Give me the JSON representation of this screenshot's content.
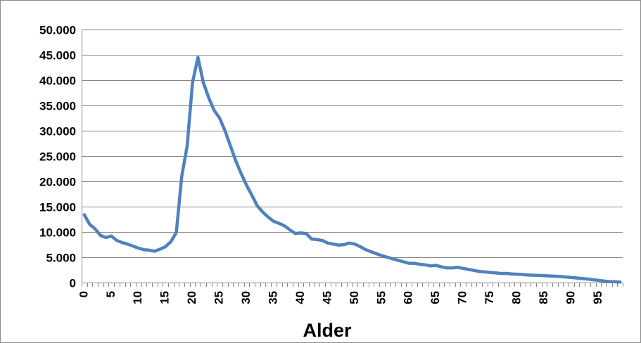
{
  "chart_data": {
    "type": "line",
    "title": "",
    "xlabel": "Alder",
    "ylabel": "",
    "xlim": [
      0,
      100
    ],
    "ylim": [
      0,
      50000
    ],
    "grid": true,
    "legend": "none",
    "y_ticks": [
      0,
      5000,
      10000,
      15000,
      20000,
      25000,
      30000,
      35000,
      40000,
      45000,
      50000
    ],
    "y_tick_labels": [
      "0",
      "5.000",
      "10.000",
      "15.000",
      "20.000",
      "25.000",
      "30.000",
      "35.000",
      "40.000",
      "45.000",
      "50.000"
    ],
    "x_tick_labels": [
      "0",
      "5",
      "10",
      "15",
      "20",
      "25",
      "30",
      "35",
      "40",
      "45",
      "50",
      "55",
      "60",
      "65",
      "70",
      "75",
      "80",
      "85",
      "90",
      "95"
    ],
    "series": [
      {
        "color": "#4f81bd",
        "x": [
          0,
          1,
          2,
          3,
          4,
          5,
          6,
          7,
          8,
          9,
          10,
          11,
          12,
          13,
          14,
          15,
          16,
          17,
          18,
          19,
          20,
          21,
          22,
          23,
          24,
          25,
          26,
          27,
          28,
          29,
          30,
          31,
          32,
          33,
          34,
          35,
          36,
          37,
          38,
          39,
          40,
          41,
          42,
          43,
          44,
          45,
          46,
          47,
          48,
          49,
          50,
          51,
          52,
          53,
          54,
          55,
          56,
          57,
          58,
          59,
          60,
          61,
          62,
          63,
          64,
          65,
          66,
          67,
          68,
          69,
          70,
          71,
          72,
          73,
          74,
          75,
          76,
          77,
          78,
          79,
          80,
          81,
          82,
          83,
          84,
          85,
          86,
          87,
          88,
          89,
          90,
          91,
          92,
          93,
          94,
          95,
          96,
          97,
          98,
          99
        ],
        "values": [
          13400,
          11500,
          10600,
          9300,
          8900,
          9200,
          8300,
          7900,
          7600,
          7200,
          6800,
          6500,
          6400,
          6200,
          6600,
          7100,
          8100,
          9900,
          21000,
          27000,
          39500,
          44500,
          39500,
          36500,
          34000,
          32500,
          30000,
          27000,
          24000,
          21500,
          19200,
          17200,
          15100,
          13900,
          12900,
          12100,
          11700,
          11200,
          10400,
          9700,
          9800,
          9700,
          8600,
          8500,
          8300,
          7800,
          7600,
          7400,
          7500,
          7800,
          7600,
          7100,
          6500,
          6100,
          5700,
          5300,
          5000,
          4700,
          4400,
          4100,
          3800,
          3800,
          3600,
          3500,
          3300,
          3400,
          3100,
          2900,
          2900,
          3000,
          2800,
          2600,
          2400,
          2200,
          2100,
          2000,
          1900,
          1800,
          1800,
          1700,
          1650,
          1600,
          1500,
          1450,
          1400,
          1350,
          1300,
          1250,
          1200,
          1100,
          1000,
          900,
          800,
          700,
          550,
          450,
          300,
          200,
          150,
          100
        ]
      }
    ]
  }
}
